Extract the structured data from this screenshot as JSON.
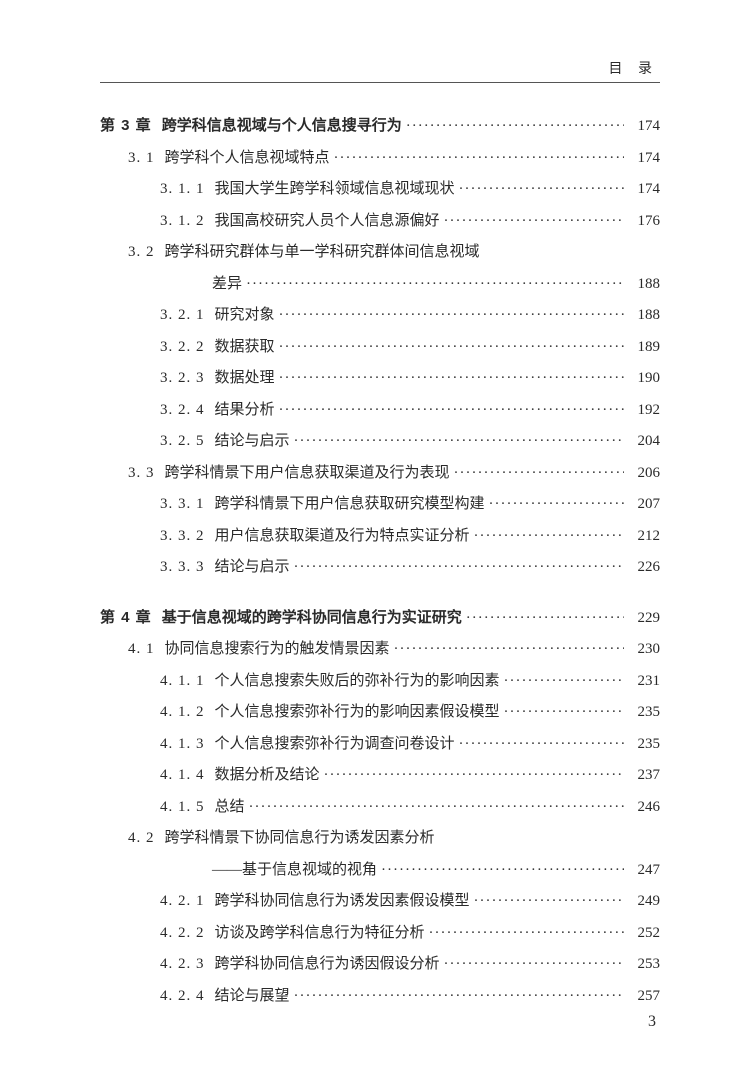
{
  "header": {
    "label": "目 录"
  },
  "footer": {
    "page": "3"
  },
  "toc": [
    {
      "level": 0,
      "num": "第 3 章",
      "title": "跨学科信息视域与个人信息搜寻行为",
      "page": "174",
      "chapter": true
    },
    {
      "level": 1,
      "num": "3. 1",
      "title": "跨学科个人信息视域特点",
      "page": "174"
    },
    {
      "level": 2,
      "num": "3. 1. 1",
      "title": "我国大学生跨学科领域信息视域现状",
      "page": "174"
    },
    {
      "level": 2,
      "num": "3. 1. 2",
      "title": "我国高校研究人员个人信息源偏好",
      "page": "176"
    },
    {
      "level": 1,
      "num": "3. 2",
      "title": "跨学科研究群体与单一学科研究群体间信息视域",
      "page": "",
      "noLeader": true
    },
    {
      "level": 1,
      "num": "",
      "title": "差异",
      "page": "188",
      "cont": true
    },
    {
      "level": 2,
      "num": "3. 2. 1",
      "title": "研究对象",
      "page": "188"
    },
    {
      "level": 2,
      "num": "3. 2. 2",
      "title": "数据获取",
      "page": "189"
    },
    {
      "level": 2,
      "num": "3. 2. 3",
      "title": "数据处理",
      "page": "190"
    },
    {
      "level": 2,
      "num": "3. 2. 4",
      "title": "结果分析",
      "page": "192"
    },
    {
      "level": 2,
      "num": "3. 2. 5",
      "title": "结论与启示",
      "page": "204"
    },
    {
      "level": 1,
      "num": "3. 3",
      "title": "跨学科情景下用户信息获取渠道及行为表现",
      "page": "206"
    },
    {
      "level": 2,
      "num": "3. 3. 1",
      "title": "跨学科情景下用户信息获取研究模型构建",
      "page": "207"
    },
    {
      "level": 2,
      "num": "3. 3. 2",
      "title": "用户信息获取渠道及行为特点实证分析",
      "page": "212"
    },
    {
      "level": 2,
      "num": "3. 3. 3",
      "title": "结论与启示",
      "page": "226"
    },
    {
      "gap": true
    },
    {
      "level": 0,
      "num": "第 4 章",
      "title": "基于信息视域的跨学科协同信息行为实证研究",
      "page": "229",
      "chapter": true
    },
    {
      "level": 1,
      "num": "4. 1",
      "title": "协同信息搜索行为的触发情景因素",
      "page": "230"
    },
    {
      "level": 2,
      "num": "4. 1. 1",
      "title": "个人信息搜索失败后的弥补行为的影响因素",
      "page": "231"
    },
    {
      "level": 2,
      "num": "4. 1. 2",
      "title": "个人信息搜索弥补行为的影响因素假设模型",
      "page": "235"
    },
    {
      "level": 2,
      "num": "4. 1. 3",
      "title": "个人信息搜索弥补行为调查问卷设计",
      "page": "235"
    },
    {
      "level": 2,
      "num": "4. 1. 4",
      "title": "数据分析及结论",
      "page": "237"
    },
    {
      "level": 2,
      "num": "4. 1. 5",
      "title": "总结",
      "page": "246"
    },
    {
      "level": 1,
      "num": "4. 2",
      "title": "跨学科情景下协同信息行为诱发因素分析",
      "page": "",
      "noLeader": true
    },
    {
      "level": 1,
      "num": "",
      "title": "——基于信息视域的视角",
      "page": "247",
      "cont": true
    },
    {
      "level": 2,
      "num": "4. 2. 1",
      "title": "跨学科协同信息行为诱发因素假设模型",
      "page": "249"
    },
    {
      "level": 2,
      "num": "4. 2. 2",
      "title": "访谈及跨学科信息行为特征分析",
      "page": "252"
    },
    {
      "level": 2,
      "num": "4. 2. 3",
      "title": "跨学科协同信息行为诱因假设分析",
      "page": "253"
    },
    {
      "level": 2,
      "num": "4. 2. 4",
      "title": "结论与展望",
      "page": "257"
    }
  ]
}
